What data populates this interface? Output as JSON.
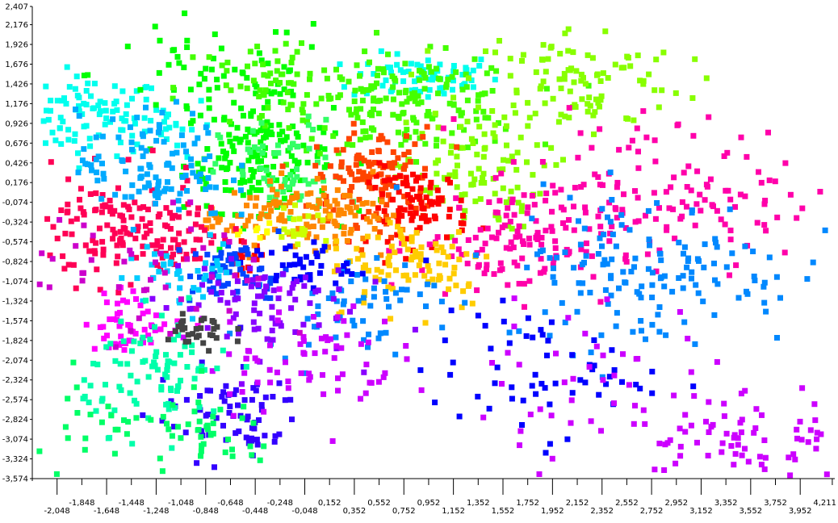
{
  "chart_data": {
    "type": "scatter",
    "title": "",
    "xlabel": "",
    "ylabel": "",
    "xlim": [
      -2.248,
      4.231
    ],
    "ylim": [
      -3.574,
      2.407
    ],
    "grid": false,
    "legend": "none",
    "marker": "square",
    "x_ticks": [
      "-2,048",
      "-1,848",
      "-1,648",
      "-1,448",
      "-1,248",
      "-1,048",
      "-0,848",
      "-0,648",
      "-0,448",
      "-0,248",
      "-0,048",
      "0,152",
      "0,352",
      "0,552",
      "0,752",
      "0,952",
      "1,152",
      "1,352",
      "1,552",
      "1,752",
      "1,952",
      "2,152",
      "2,352",
      "2,552",
      "2,752",
      "2,952",
      "3,152",
      "3,352",
      "3,552",
      "3,752",
      "3,952",
      "4,211"
    ],
    "y_ticks": [
      "2,407",
      "2,176",
      "1,926",
      "1,676",
      "1,426",
      "1,176",
      "0,926",
      "0,676",
      "0,426",
      "0,176",
      "-0,074",
      "-0,324",
      "-0,574",
      "-0,824",
      "-1,074",
      "-1,324",
      "-1,574",
      "-1,824",
      "-2,074",
      "-2,324",
      "-2,574",
      "-2,824",
      "-3,074",
      "-3,324",
      "-3,574"
    ],
    "series": [
      {
        "color": "#00ffee",
        "clusters": [
          [
            -1.8,
            1.05,
            0.3,
            0.25,
            90
          ],
          [
            0.9,
            1.55,
            0.3,
            0.15,
            70
          ],
          [
            -1.2,
            0.95,
            0.2,
            0.2,
            20
          ]
        ]
      },
      {
        "color": "#00ff00",
        "clusters": [
          [
            -0.45,
            0.55,
            0.3,
            0.35,
            160
          ],
          [
            -0.8,
            1.6,
            0.5,
            0.4,
            60
          ]
        ]
      },
      {
        "color": "#44ff00",
        "clusters": [
          [
            0.8,
            1.2,
            0.45,
            0.3,
            160
          ],
          [
            -0.3,
            1.4,
            0.4,
            0.35,
            70
          ]
        ]
      },
      {
        "color": "#88ff00",
        "clusters": [
          [
            2.1,
            1.5,
            0.45,
            0.35,
            110
          ],
          [
            1.25,
            0.3,
            0.3,
            0.35,
            90
          ]
        ]
      },
      {
        "color": "#33ff66",
        "clusters": [
          [
            -0.25,
            0.3,
            0.25,
            0.35,
            60
          ]
        ]
      },
      {
        "color": "#ff4400",
        "clusters": [
          [
            0.5,
            0.3,
            0.25,
            0.3,
            120
          ]
        ]
      },
      {
        "color": "#ff0000",
        "clusters": [
          [
            0.85,
            -0.1,
            0.2,
            0.25,
            90
          ],
          [
            -0.55,
            -0.75,
            0.08,
            0.1,
            15
          ]
        ]
      },
      {
        "color": "#ff8800",
        "clusters": [
          [
            -0.2,
            -0.15,
            0.25,
            0.2,
            70
          ],
          [
            0.25,
            -0.3,
            0.2,
            0.25,
            50
          ],
          [
            -0.75,
            -0.25,
            0.12,
            0.12,
            15
          ]
        ]
      },
      {
        "color": "#ccff00",
        "clusters": [
          [
            -0.1,
            -0.4,
            0.12,
            0.12,
            20
          ]
        ]
      },
      {
        "color": "#ffff00",
        "clusters": [
          [
            -0.4,
            -0.4,
            0.08,
            0.08,
            8
          ]
        ]
      },
      {
        "color": "#ff0055",
        "clusters": [
          [
            -1.6,
            -0.4,
            0.35,
            0.35,
            120
          ],
          [
            -1.1,
            -0.45,
            0.25,
            0.2,
            40
          ]
        ]
      },
      {
        "color": "#ff00aa",
        "clusters": [
          [
            1.65,
            -0.55,
            0.4,
            0.35,
            120
          ],
          [
            2.6,
            0.1,
            0.6,
            0.5,
            100
          ],
          [
            3.5,
            0.0,
            0.4,
            0.4,
            30
          ]
        ]
      },
      {
        "color": "#ffcc00",
        "clusters": [
          [
            0.8,
            -0.8,
            0.35,
            0.3,
            90
          ]
        ]
      },
      {
        "color": "#0088ff",
        "clusters": [
          [
            2.7,
            -0.9,
            0.6,
            0.5,
            150
          ],
          [
            0.3,
            -1.3,
            0.35,
            0.3,
            60
          ]
        ]
      },
      {
        "color": "#0044ff",
        "clusters": [
          [
            -0.6,
            -0.95,
            0.2,
            0.2,
            60
          ]
        ]
      },
      {
        "color": "#0000ff",
        "clusters": [
          [
            -0.1,
            -0.85,
            0.2,
            0.15,
            40
          ],
          [
            1.8,
            -2.2,
            0.45,
            0.4,
            60
          ]
        ]
      },
      {
        "color": "#8800ff",
        "clusters": [
          [
            -0.5,
            -1.3,
            0.4,
            0.35,
            80
          ]
        ]
      },
      {
        "color": "#3300ff",
        "clusters": [
          [
            -0.7,
            -2.7,
            0.3,
            0.3,
            70
          ]
        ]
      },
      {
        "color": "#00aaff",
        "clusters": [
          [
            -1.3,
            0.4,
            0.3,
            0.35,
            110
          ]
        ]
      },
      {
        "color": "#00ccff",
        "clusters": [
          [
            -1.0,
            -0.9,
            0.25,
            0.2,
            40
          ]
        ]
      },
      {
        "color": "#ff00ff",
        "clusters": [
          [
            -1.45,
            -1.55,
            0.2,
            0.2,
            50
          ]
        ]
      },
      {
        "color": "#cc00ff",
        "clusters": [
          [
            -0.1,
            -2.0,
            0.4,
            0.35,
            70
          ],
          [
            3.4,
            -3.1,
            0.45,
            0.3,
            70
          ],
          [
            2.5,
            -2.3,
            0.6,
            0.5,
            50
          ]
        ]
      },
      {
        "color": "#cc00cc",
        "clusters": [
          [
            -1.5,
            -1.0,
            0.6,
            0.5,
            50
          ]
        ]
      },
      {
        "color": "#00ffaa",
        "clusters": [
          [
            -1.25,
            -2.2,
            0.3,
            0.35,
            90
          ]
        ]
      },
      {
        "color": "#00ff66",
        "clusters": [
          [
            -0.8,
            -3.0,
            0.25,
            0.25,
            40
          ],
          [
            -1.8,
            -3.1,
            0.35,
            0.4,
            30
          ]
        ]
      },
      {
        "color": "#444444",
        "clusters": [
          [
            -0.95,
            -1.7,
            0.15,
            0.15,
            30
          ]
        ]
      }
    ]
  }
}
